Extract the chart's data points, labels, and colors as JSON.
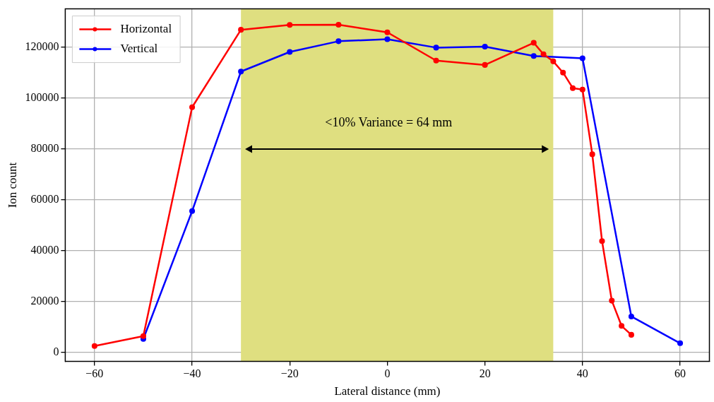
{
  "chart_data": {
    "type": "line",
    "xlabel": "Lateral distance (mm)",
    "ylabel": "Ion count",
    "xlim": [
      -66,
      66
    ],
    "xticks": [
      -60,
      -40,
      -20,
      0,
      20,
      40,
      60
    ],
    "ylim": [
      -3400,
      135000
    ],
    "yticks": [
      0,
      20000,
      40000,
      60000,
      80000,
      100000,
      120000
    ],
    "grid": true,
    "legend": "top left",
    "marker": "circle",
    "line_style": "solid",
    "bands": [
      {
        "axis": "x",
        "from": -30,
        "to": 34,
        "color": "#dfdf80"
      }
    ],
    "annotations": [
      "<10% Variance = 64 mm"
    ],
    "series": [
      {
        "name": "Horizontal",
        "color": "#ff0000",
        "x": [
          -60,
          -50,
          -40,
          -30,
          -20,
          -10,
          0,
          10,
          20,
          30,
          32,
          34,
          36,
          38,
          40,
          42,
          44,
          46,
          48,
          50
        ],
        "values": [
          2600,
          6500,
          96400,
          126800,
          128700,
          128800,
          125800,
          114700,
          113000,
          121700,
          117200,
          114400,
          110000,
          103900,
          103300,
          77900,
          43800,
          20400,
          10500,
          7000
        ]
      },
      {
        "name": "Vertical",
        "color": "#0000ff",
        "x": [
          -50,
          -40,
          -30,
          -20,
          -10,
          0,
          10,
          20,
          30,
          40,
          50,
          60
        ],
        "values": [
          5400,
          55600,
          110400,
          118100,
          122300,
          123100,
          119800,
          120200,
          116500,
          115600,
          14200,
          3700
        ]
      }
    ]
  }
}
